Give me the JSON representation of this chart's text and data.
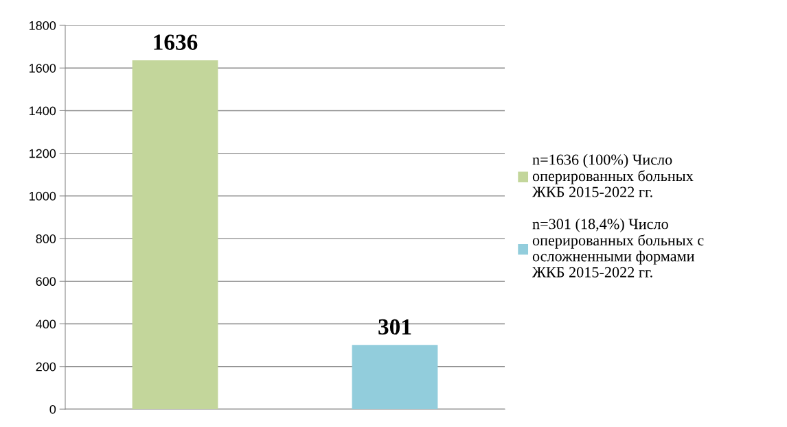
{
  "chart_data": {
    "type": "bar",
    "categories": [
      null,
      null
    ],
    "series": [
      {
        "name": "n=1636 (100%) Число\nоперированных больных\nЖКБ 2015-2022 гг.",
        "color": "#c3d69b",
        "values": [
          1636,
          null
        ]
      },
      {
        "name": "n=301 (18,4%) Число\nоперированных больных с\nосложненными формами\nЖКБ 2015-2022 гг.",
        "color": "#92cddc",
        "values": [
          null,
          301
        ]
      }
    ],
    "ylim": [
      0,
      1800
    ],
    "yticks": [
      0,
      200,
      400,
      600,
      800,
      1000,
      1200,
      1400,
      1600,
      1800
    ],
    "grid": "y",
    "legend": "right",
    "data_labels": true
  }
}
